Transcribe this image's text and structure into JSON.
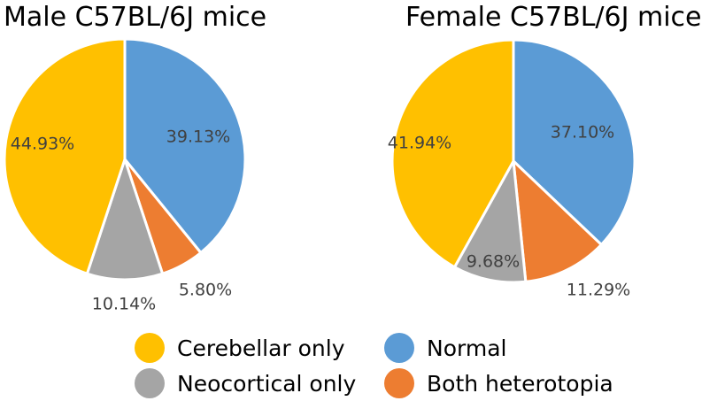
{
  "chart_data": [
    {
      "type": "pie",
      "title": "Male C57BL/6J mice",
      "categories": [
        "Normal",
        "Both heterotopia",
        "Neocortical only",
        "Cerebellar only"
      ],
      "values": [
        39.13,
        5.8,
        10.14,
        44.93
      ],
      "labels": [
        "39.13%",
        "5.80%",
        "10.14%",
        "44.93%"
      ]
    },
    {
      "type": "pie",
      "title": "Female C57BL/6J mice",
      "categories": [
        "Normal",
        "Both heterotopia",
        "Neocortical only",
        "Cerebellar only"
      ],
      "values": [
        37.1,
        11.29,
        9.68,
        41.94
      ],
      "labels": [
        "37.10%",
        "11.29%",
        "9.68%",
        "41.94%"
      ]
    }
  ],
  "colors": {
    "Cerebellar only": "#FFC000",
    "Normal": "#5B9BD5",
    "Neocortical only": "#A5A5A5",
    "Both heterotopia": "#ED7D31"
  },
  "legend": {
    "items": [
      "Cerebellar only",
      "Normal",
      "Neocortical only",
      "Both heterotopia"
    ]
  }
}
